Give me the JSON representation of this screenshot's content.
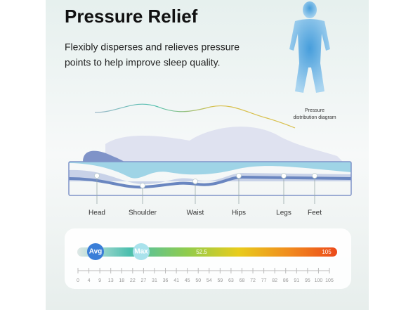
{
  "header": {
    "title": "Pressure Relief",
    "subtitle_lines": [
      "Flexibly disperses and relieves pressure",
      "points to help improve sleep quality."
    ]
  },
  "figure": {
    "caption_lines": [
      "Pressure",
      "distribution diagram"
    ]
  },
  "body_parts": [
    "Head",
    "Shoulder",
    "Waist",
    "Hips",
    "Legs",
    "Feet"
  ],
  "scale": {
    "avg_label": "Avg",
    "max_label": "Max",
    "mid_value": "52.5",
    "end_value": "105",
    "ticks": [
      "0",
      "4",
      "9",
      "13",
      "18",
      "22",
      "27",
      "31",
      "36",
      "41",
      "45",
      "50",
      "54",
      "59",
      "63",
      "68",
      "72",
      "77",
      "82",
      "86",
      "91",
      "95",
      "100",
      "105"
    ]
  }
}
